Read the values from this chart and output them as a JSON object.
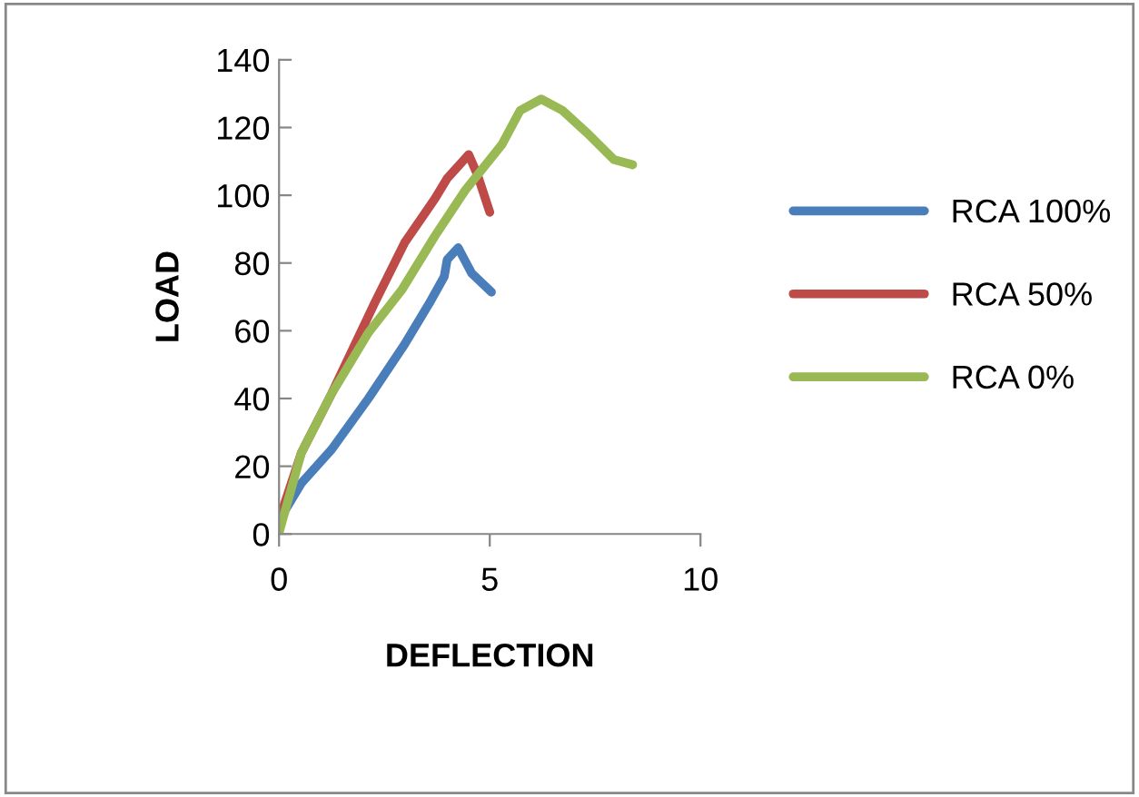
{
  "chart_data": {
    "type": "line",
    "xlabel": "DEFLECTION",
    "ylabel": "LOAD",
    "xlim": [
      0,
      10
    ],
    "xticks": [
      0,
      5,
      10
    ],
    "ylim": [
      0,
      140
    ],
    "yticks": [
      0,
      20,
      40,
      60,
      80,
      100,
      120,
      140
    ],
    "grid": false,
    "legend": "right",
    "marker": "none",
    "line_style": "solid",
    "series": [
      {
        "name": "RCA 100%",
        "color": "#4a7ebb",
        "x": [
          0,
          0.53,
          1.25,
          2.12,
          2.98,
          3.56,
          3.92,
          3.99,
          4.25,
          4.57,
          5.04
        ],
        "values": [
          4,
          15,
          25,
          40,
          56,
          68,
          76,
          81,
          84.5,
          77,
          71.4
        ]
      },
      {
        "name": "RCA 50%",
        "color": "#be4b48",
        "x": [
          0,
          0.53,
          1.25,
          2.26,
          2.98,
          3.7,
          3.99,
          4.5,
          4.71,
          5.0
        ],
        "values": [
          4,
          24,
          41.5,
          68,
          86,
          99,
          105,
          112,
          106,
          95
        ]
      },
      {
        "name": "RCA 0%",
        "color": "#98b954",
        "x": [
          0,
          0.53,
          1.25,
          2.12,
          2.91,
          3.7,
          4.42,
          5.29,
          5.72,
          6.22,
          6.73,
          7.3,
          7.95,
          8.39
        ],
        "values": [
          0.4,
          24,
          41.5,
          59.4,
          72,
          88,
          101.5,
          115,
          125,
          128.4,
          125,
          118.5,
          110.5,
          109
        ]
      }
    ]
  }
}
